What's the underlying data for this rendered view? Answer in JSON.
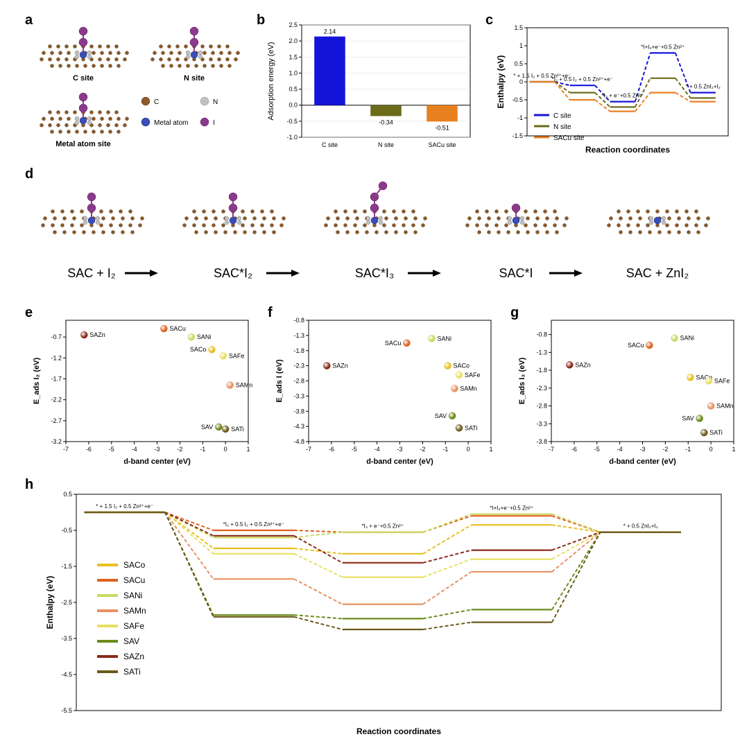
{
  "panel_a": {
    "label": "a",
    "sites": [
      "C site",
      "N site",
      "Metal atom site"
    ],
    "legend": [
      {
        "name": "C",
        "color": "#8b5a2b"
      },
      {
        "name": "N",
        "color": "#c0c0c0"
      },
      {
        "name": "Metal atom",
        "color": "#3a4db8"
      },
      {
        "name": "I",
        "color": "#8b3a8b"
      }
    ]
  },
  "panel_b": {
    "label": "b",
    "type": "bar",
    "ylabel": "Adsorption energy (eV)",
    "ylim": [
      -1.0,
      2.5
    ],
    "ytick_step": 0.5,
    "categories": [
      "C site",
      "N site",
      "SACu site"
    ],
    "values": [
      2.14,
      -0.34,
      -0.51
    ],
    "bar_colors": [
      "#1414d8",
      "#6b6b1a",
      "#e88020"
    ],
    "value_labels": [
      "2.14",
      "-0.34",
      "-0.51"
    ],
    "label_fontsize": 9,
    "background": "#ffffff",
    "border_color": "#000000"
  },
  "panel_c": {
    "label": "c",
    "type": "step",
    "ylabel": "Enthalpy (eV)",
    "xlabel": "Reaction coordinates",
    "ylim": [
      -1.5,
      1.5
    ],
    "ytick_step": 0.5,
    "series": [
      {
        "name": "C site",
        "color": "#1414d8",
        "values": [
          0,
          -0.1,
          -0.55,
          0.8,
          -0.3
        ]
      },
      {
        "name": "N site",
        "color": "#6b6b1a",
        "values": [
          0,
          -0.3,
          -0.7,
          0.1,
          -0.45
        ]
      },
      {
        "name": "SACu site",
        "color": "#e88020",
        "values": [
          0,
          -0.5,
          -0.82,
          -0.3,
          -0.55
        ]
      }
    ],
    "step_labels": [
      "* + 1.5 I₂ + 0.5 Zn²⁺+e⁻",
      "*I₂ + 0.5 I₂ + 0.5 Zn²⁺+e⁻",
      "*I₃ + e⁻+0.5 Zn²⁺",
      "*I+I₂+e⁻+0.5 Zn²⁺",
      "* + 0.5 ZnI₂+I₂"
    ]
  },
  "panel_d": {
    "label": "d",
    "stages": [
      "SAC + I₂",
      "SAC*I₂",
      "SAC*I₃",
      "SAC*I",
      "SAC + ZnI₂"
    ],
    "iodine_counts": [
      2,
      2,
      3,
      1,
      0
    ]
  },
  "panel_efg_common": {
    "xlabel": "d-band center (eV)",
    "xlim": [
      -7,
      1
    ],
    "xtick_step": 1,
    "points_meta": [
      {
        "name": "SAZn",
        "color": "#8b2a1a"
      },
      {
        "name": "SACu",
        "color": "#e06020"
      },
      {
        "name": "SANi",
        "color": "#c8d860"
      },
      {
        "name": "SACo",
        "color": "#e8c020"
      },
      {
        "name": "SAFe",
        "color": "#e8e060"
      },
      {
        "name": "SAMn",
        "color": "#e89060"
      },
      {
        "name": "SAV",
        "color": "#6b8b1a"
      },
      {
        "name": "SATi",
        "color": "#6b5a1a"
      }
    ]
  },
  "panel_e": {
    "label": "e",
    "ylabel": "E_ads I₂ (eV)",
    "ylim": [
      -3.2,
      -0.3
    ],
    "ytick_step": 0.5,
    "points": [
      {
        "x": -6.2,
        "y": -0.65,
        "lpos": "r"
      },
      {
        "x": -2.7,
        "y": -0.5,
        "lpos": "r"
      },
      {
        "x": -1.5,
        "y": -0.7,
        "lpos": "r"
      },
      {
        "x": -0.6,
        "y": -1.0,
        "lpos": "l"
      },
      {
        "x": -0.1,
        "y": -1.15,
        "lpos": "r"
      },
      {
        "x": 0.2,
        "y": -1.85,
        "lpos": "r"
      },
      {
        "x": -0.3,
        "y": -2.85,
        "lpos": "l"
      },
      {
        "x": 0.0,
        "y": -2.9,
        "lpos": "r"
      }
    ]
  },
  "panel_f": {
    "label": "f",
    "ylabel": "E_ads I (eV)",
    "ylim": [
      -4.8,
      -0.8
    ],
    "ytick_step": 0.5,
    "points": [
      {
        "x": -6.2,
        "y": -2.3,
        "lpos": "r"
      },
      {
        "x": -2.7,
        "y": -1.55,
        "lpos": "l"
      },
      {
        "x": -1.6,
        "y": -1.4,
        "lpos": "r"
      },
      {
        "x": -0.9,
        "y": -2.3,
        "lpos": "r"
      },
      {
        "x": -0.4,
        "y": -2.6,
        "lpos": "r"
      },
      {
        "x": -0.6,
        "y": -3.05,
        "lpos": "r"
      },
      {
        "x": -0.7,
        "y": -3.95,
        "lpos": "l"
      },
      {
        "x": -0.4,
        "y": -4.35,
        "lpos": "r"
      }
    ]
  },
  "panel_g": {
    "label": "g",
    "ylabel": "E_ads I₃ (eV)",
    "ylim": [
      -3.8,
      -0.4
    ],
    "ytick_step": 0.5,
    "points": [
      {
        "x": -6.2,
        "y": -1.65,
        "lpos": "r"
      },
      {
        "x": -2.7,
        "y": -1.1,
        "lpos": "l"
      },
      {
        "x": -1.6,
        "y": -0.9,
        "lpos": "r"
      },
      {
        "x": -0.9,
        "y": -2.0,
        "lpos": "r"
      },
      {
        "x": -0.1,
        "y": -2.1,
        "lpos": "r"
      },
      {
        "x": 0.0,
        "y": -2.8,
        "lpos": "r"
      },
      {
        "x": -0.5,
        "y": -3.15,
        "lpos": "l"
      },
      {
        "x": -0.3,
        "y": -3.55,
        "lpos": "r"
      }
    ]
  },
  "panel_h": {
    "label": "h",
    "type": "step",
    "ylabel": "Enthalpy (eV)",
    "xlabel": "Reaction coordinates",
    "ylim": [
      -5.5,
      0.5
    ],
    "ytick_step": 1,
    "step_labels": [
      "* + 1.5 I₂ + 0.5 Zn²⁺+e⁻",
      "*I₂ + 0.5 I₂ + 0.5 Zn²⁺+e⁻",
      "*I₃ + e⁻+0.5 Zn²⁺",
      "*I+I₂+e⁻+0.5 Zn²⁺",
      "* + 0.5 ZnI₂+I₂"
    ],
    "series": [
      {
        "name": "SACo",
        "color": "#e8c020",
        "values": [
          0,
          -1.0,
          -1.15,
          -0.35,
          -0.55
        ]
      },
      {
        "name": "SACu",
        "color": "#e06020",
        "values": [
          0,
          -0.5,
          -0.55,
          -0.1,
          -0.55
        ]
      },
      {
        "name": "SANi",
        "color": "#c8d860",
        "values": [
          0,
          -0.7,
          -0.55,
          -0.05,
          -0.55
        ]
      },
      {
        "name": "SAMn",
        "color": "#e89060",
        "values": [
          0,
          -1.85,
          -2.55,
          -1.65,
          -0.55
        ]
      },
      {
        "name": "SAFe",
        "color": "#e8e060",
        "values": [
          0,
          -1.15,
          -1.8,
          -1.3,
          -0.55
        ]
      },
      {
        "name": "SAV",
        "color": "#6b8b1a",
        "values": [
          0,
          -2.85,
          -2.95,
          -2.7,
          -0.55
        ]
      },
      {
        "name": "SAZn",
        "color": "#8b2a1a",
        "values": [
          0,
          -0.65,
          -1.4,
          -1.05,
          -0.55
        ]
      },
      {
        "name": "SATi",
        "color": "#6b5a1a",
        "values": [
          0,
          -2.9,
          -3.25,
          -3.05,
          -0.55
        ]
      }
    ]
  }
}
